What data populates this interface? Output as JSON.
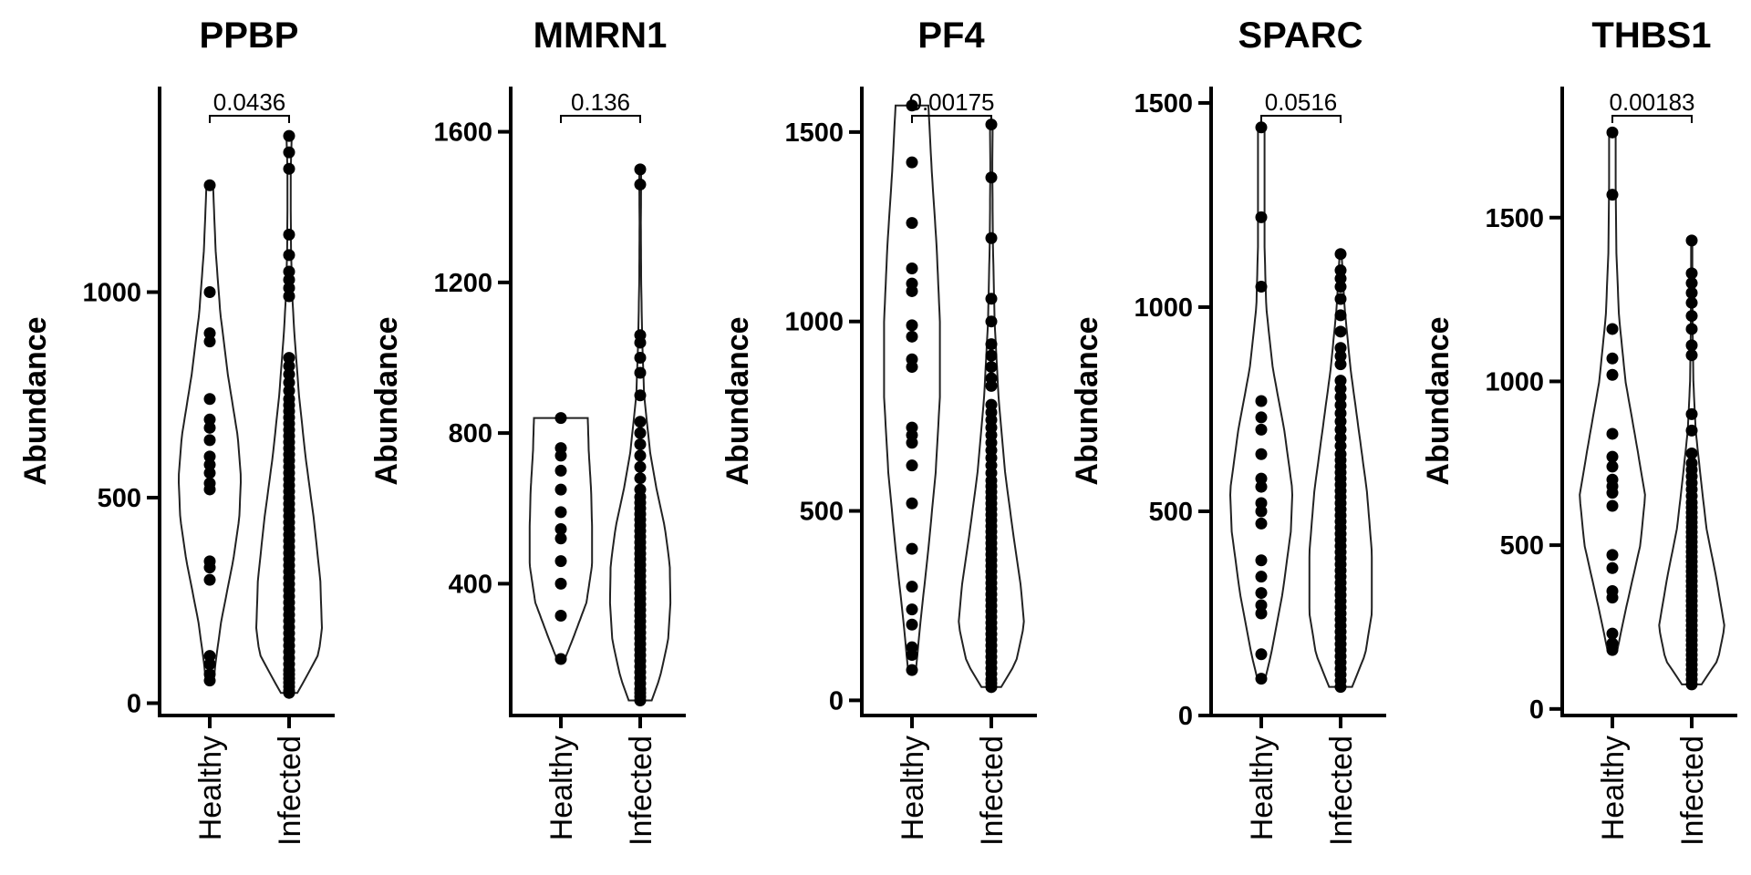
{
  "chart_data": [
    {
      "type": "violin",
      "title": "PPBP",
      "ylabel": "Abundance",
      "categories": [
        "Healthy",
        "Infected"
      ],
      "yticks": [
        0,
        500,
        1000
      ],
      "ylim": [
        -30,
        1500
      ],
      "p_value": "0.0436",
      "series": [
        {
          "values": [
            55,
            70,
            95,
            115,
            300,
            330,
            345,
            520,
            535,
            560,
            580,
            600,
            640,
            670,
            690,
            740,
            880,
            900,
            1000,
            1260
          ]
        },
        {
          "values": [
            25,
            30,
            40,
            50,
            60,
            70,
            80,
            95,
            110,
            125,
            140,
            155,
            170,
            185,
            200,
            215,
            230,
            245,
            260,
            275,
            290,
            305,
            320,
            335,
            350,
            365,
            380,
            395,
            410,
            425,
            440,
            455,
            470,
            485,
            500,
            515,
            530,
            545,
            560,
            575,
            590,
            605,
            620,
            635,
            650,
            665,
            680,
            695,
            710,
            725,
            740,
            760,
            780,
            800,
            820,
            840,
            990,
            1010,
            1030,
            1050,
            1090,
            1140,
            1300,
            1340,
            1380
          ]
        }
      ],
      "violins": [
        {
          "min": 55,
          "max": 1260,
          "profile": [
            [
              55,
              0.12
            ],
            [
              100,
              0.18
            ],
            [
              200,
              0.35
            ],
            [
              350,
              0.72
            ],
            [
              450,
              0.9
            ],
            [
              550,
              0.95
            ],
            [
              650,
              0.85
            ],
            [
              800,
              0.55
            ],
            [
              950,
              0.32
            ],
            [
              1100,
              0.18
            ],
            [
              1260,
              0.1
            ]
          ]
        },
        {
          "min": 25,
          "max": 1380,
          "profile": [
            [
              25,
              0.25
            ],
            [
              60,
              0.5
            ],
            [
              120,
              0.9
            ],
            [
              180,
              1.0
            ],
            [
              300,
              0.95
            ],
            [
              450,
              0.75
            ],
            [
              600,
              0.5
            ],
            [
              750,
              0.3
            ],
            [
              900,
              0.16
            ],
            [
              1000,
              0.09
            ],
            [
              1100,
              0.06
            ],
            [
              1200,
              0.05
            ],
            [
              1300,
              0.05
            ],
            [
              1380,
              0.08
            ]
          ]
        }
      ]
    },
    {
      "type": "violin",
      "title": "MMRN1",
      "ylabel": "Abundance",
      "categories": [
        "Healthy",
        "Infected"
      ],
      "yticks": [
        400,
        800,
        1200,
        1600
      ],
      "ylim": [
        50,
        1720
      ],
      "p_value": "0.136",
      "series": [
        {
          "values": [
            200,
            315,
            400,
            460,
            520,
            545,
            590,
            650,
            700,
            740,
            760,
            840
          ]
        },
        {
          "values": [
            90,
            100,
            110,
            120,
            135,
            150,
            165,
            180,
            195,
            210,
            225,
            240,
            255,
            270,
            285,
            300,
            315,
            330,
            345,
            360,
            375,
            390,
            405,
            420,
            435,
            450,
            465,
            480,
            495,
            510,
            525,
            540,
            555,
            570,
            585,
            600,
            615,
            630,
            650,
            680,
            710,
            740,
            770,
            800,
            830,
            900,
            960,
            1000,
            1040,
            1060,
            1460,
            1500
          ]
        }
      ],
      "violins": [
        {
          "min": 200,
          "max": 840,
          "profile": [
            [
              200,
              0.12
            ],
            [
              250,
              0.35
            ],
            [
              350,
              0.78
            ],
            [
              450,
              0.95
            ],
            [
              550,
              0.95
            ],
            [
              650,
              0.92
            ],
            [
              750,
              0.85
            ],
            [
              840,
              0.82
            ]
          ]
        },
        {
          "min": 90,
          "max": 1500,
          "profile": [
            [
              90,
              0.35
            ],
            [
              150,
              0.6
            ],
            [
              250,
              0.85
            ],
            [
              350,
              0.92
            ],
            [
              450,
              0.9
            ],
            [
              550,
              0.75
            ],
            [
              650,
              0.5
            ],
            [
              750,
              0.3
            ],
            [
              900,
              0.12
            ],
            [
              1050,
              0.06
            ],
            [
              1200,
              0.03
            ],
            [
              1350,
              0.02
            ],
            [
              1500,
              0.03
            ]
          ]
        }
      ]
    },
    {
      "type": "violin",
      "title": "PF4",
      "ylabel": "Abundance",
      "categories": [
        "Healthy",
        "Infected"
      ],
      "yticks": [
        0,
        500,
        1000,
        1500
      ],
      "ylim": [
        -40,
        1620
      ],
      "p_value": "0.00175",
      "series": [
        {
          "values": [
            80,
            120,
            140,
            200,
            240,
            300,
            400,
            520,
            620,
            680,
            700,
            720,
            880,
            900,
            960,
            990,
            1080,
            1100,
            1140,
            1260,
            1420,
            1570
          ]
        },
        {
          "values": [
            35,
            45,
            55,
            70,
            85,
            100,
            115,
            130,
            145,
            160,
            175,
            190,
            205,
            220,
            235,
            250,
            265,
            280,
            295,
            310,
            325,
            340,
            355,
            370,
            385,
            400,
            415,
            430,
            445,
            460,
            475,
            490,
            505,
            520,
            535,
            550,
            565,
            580,
            600,
            620,
            640,
            660,
            680,
            700,
            720,
            740,
            760,
            780,
            830,
            850,
            880,
            910,
            940,
            1000,
            1060,
            1220,
            1380,
            1520
          ]
        }
      ],
      "violins": [
        {
          "min": 80,
          "max": 1570,
          "profile": [
            [
              80,
              0.12
            ],
            [
              200,
              0.25
            ],
            [
              400,
              0.5
            ],
            [
              600,
              0.72
            ],
            [
              800,
              0.85
            ],
            [
              1000,
              0.85
            ],
            [
              1200,
              0.75
            ],
            [
              1400,
              0.6
            ],
            [
              1570,
              0.5
            ]
          ]
        },
        {
          "min": 35,
          "max": 1520,
          "profile": [
            [
              35,
              0.3
            ],
            [
              100,
              0.75
            ],
            [
              200,
              1.0
            ],
            [
              300,
              0.9
            ],
            [
              450,
              0.65
            ],
            [
              600,
              0.42
            ],
            [
              800,
              0.22
            ],
            [
              1000,
              0.1
            ],
            [
              1200,
              0.05
            ],
            [
              1400,
              0.03
            ],
            [
              1520,
              0.04
            ]
          ]
        }
      ]
    },
    {
      "type": "violin",
      "title": "SPARC",
      "ylabel": "Abundance",
      "categories": [
        "Healthy",
        "Infected"
      ],
      "yticks": [
        0,
        500,
        1000,
        1500
      ],
      "ylim": [
        0,
        1540
      ],
      "p_value": "0.0516",
      "series": [
        {
          "values": [
            90,
            150,
            250,
            270,
            300,
            340,
            380,
            470,
            500,
            520,
            560,
            580,
            640,
            700,
            730,
            770,
            1050,
            1220,
            1440
          ]
        },
        {
          "values": [
            70,
            85,
            100,
            115,
            130,
            145,
            160,
            175,
            190,
            205,
            220,
            235,
            250,
            265,
            280,
            295,
            310,
            325,
            340,
            355,
            370,
            385,
            400,
            415,
            430,
            445,
            460,
            475,
            490,
            505,
            520,
            535,
            550,
            565,
            580,
            595,
            610,
            625,
            640,
            660,
            680,
            700,
            720,
            740,
            760,
            780,
            800,
            820,
            860,
            880,
            900,
            940,
            980,
            1020,
            1050,
            1070,
            1090,
            1130
          ]
        }
      ],
      "violins": [
        {
          "min": 90,
          "max": 1440,
          "profile": [
            [
              90,
              0.12
            ],
            [
              150,
              0.3
            ],
            [
              300,
              0.65
            ],
            [
              450,
              0.9
            ],
            [
              550,
              0.95
            ],
            [
              700,
              0.7
            ],
            [
              850,
              0.35
            ],
            [
              1000,
              0.15
            ],
            [
              1150,
              0.1
            ],
            [
              1300,
              0.1
            ],
            [
              1440,
              0.1
            ]
          ]
        },
        {
          "min": 70,
          "max": 1130,
          "profile": [
            [
              70,
              0.35
            ],
            [
              150,
              0.75
            ],
            [
              250,
              0.95
            ],
            [
              400,
              0.95
            ],
            [
              550,
              0.8
            ],
            [
              700,
              0.55
            ],
            [
              850,
              0.3
            ],
            [
              1000,
              0.12
            ],
            [
              1130,
              0.03
            ]
          ]
        }
      ]
    },
    {
      "type": "violin",
      "title": "THBS1",
      "ylabel": "Abundance",
      "categories": [
        "Healthy",
        "Infected"
      ],
      "yticks": [
        0,
        500,
        1000,
        1500
      ],
      "ylim": [
        -20,
        1900
      ],
      "p_value": "0.00183",
      "series": [
        {
          "values": [
            180,
            200,
            230,
            340,
            360,
            430,
            470,
            620,
            660,
            680,
            700,
            740,
            770,
            840,
            1020,
            1070,
            1160,
            1570,
            1760
          ]
        },
        {
          "values": [
            75,
            90,
            105,
            120,
            135,
            150,
            165,
            180,
            195,
            210,
            225,
            240,
            255,
            270,
            285,
            300,
            315,
            330,
            345,
            360,
            375,
            390,
            405,
            420,
            435,
            450,
            465,
            480,
            495,
            510,
            525,
            540,
            555,
            570,
            585,
            600,
            615,
            630,
            650,
            670,
            690,
            710,
            730,
            750,
            780,
            850,
            900,
            1080,
            1110,
            1160,
            1200,
            1240,
            1270,
            1300,
            1330,
            1430
          ]
        }
      ],
      "violins": [
        {
          "min": 180,
          "max": 1760,
          "profile": [
            [
              180,
              0.15
            ],
            [
              300,
              0.4
            ],
            [
              500,
              0.85
            ],
            [
              650,
              1.0
            ],
            [
              800,
              0.75
            ],
            [
              1000,
              0.4
            ],
            [
              1200,
              0.2
            ],
            [
              1400,
              0.12
            ],
            [
              1600,
              0.1
            ],
            [
              1760,
              0.1
            ]
          ]
        },
        {
          "min": 75,
          "max": 1430,
          "profile": [
            [
              75,
              0.3
            ],
            [
              150,
              0.8
            ],
            [
              250,
              1.0
            ],
            [
              400,
              0.75
            ],
            [
              550,
              0.45
            ],
            [
              700,
              0.28
            ],
            [
              850,
              0.12
            ],
            [
              1000,
              0.05
            ],
            [
              1150,
              0.03
            ],
            [
              1300,
              0.02
            ],
            [
              1430,
              0.02
            ]
          ]
        }
      ]
    }
  ]
}
